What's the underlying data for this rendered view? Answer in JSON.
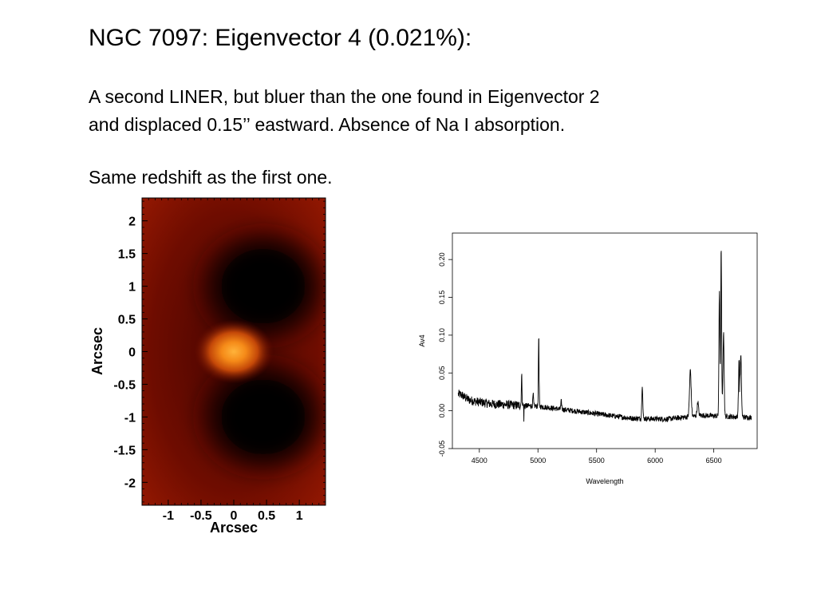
{
  "slide": {
    "title": "NGC 7097: Eigenvector 4 (0.021%):",
    "paragraph1_line1": "A second LINER, but bluer than the one found in Eigenvector 2",
    "paragraph1_line2": "and displaced 0.15’’ eastward. Absence of Na I absorption.",
    "paragraph2": "Same redshift as the first one."
  },
  "chart_data": [
    {
      "type": "heatmap",
      "xlabel": "Arcsec",
      "ylabel": "Arcsec",
      "xlim": [
        -1.4,
        1.4
      ],
      "ylim": [
        -2.35,
        2.35
      ],
      "xticks": [
        "-1",
        "-0.5",
        "0",
        "0.5",
        "1"
      ],
      "yticks": [
        "2",
        "1.5",
        "1",
        "0.5",
        "0",
        "-0.5",
        "-1",
        "-1.5",
        "-2"
      ],
      "colormap": [
        "#000000",
        "#6a0a00",
        "#b02300",
        "#f07a10",
        "#ffb33a"
      ],
      "features": [
        {
          "kind": "bright-peak",
          "x": 0.0,
          "y": 0.0
        },
        {
          "kind": "dark-lobe",
          "x": 0.45,
          "y": 1.0
        },
        {
          "kind": "dark-lobe",
          "x": 0.45,
          "y": -1.0
        }
      ]
    },
    {
      "type": "line",
      "xlabel": "Wavelength",
      "ylabel": "Av4",
      "xlim": [
        4270,
        6870
      ],
      "ylim": [
        -0.05,
        0.235
      ],
      "xticks": [
        "4500",
        "5000",
        "5500",
        "6000",
        "6500"
      ],
      "yticks": [
        "-0.05",
        "0.00",
        "0.05",
        "0.10",
        "0.15",
        "0.20"
      ],
      "line_color": "#000000",
      "continuum": {
        "x": [
          4320,
          4600,
          5000,
          5400,
          5800,
          6100,
          6400,
          6820
        ],
        "y": [
          0.016,
          0.009,
          0.006,
          -0.002,
          -0.01,
          -0.011,
          -0.006,
          -0.009
        ]
      },
      "lines": [
        {
          "x": 4861,
          "amp": 0.039,
          "width": 3
        },
        {
          "x": 4959,
          "amp": 0.015,
          "width": 3
        },
        {
          "x": 5007,
          "amp": 0.094,
          "width": 3
        },
        {
          "x": 5199,
          "amp": 0.01,
          "width": 4
        },
        {
          "x": 5890,
          "amp": 0.045,
          "width": 4
        },
        {
          "x": 6300,
          "amp": 0.062,
          "width": 7
        },
        {
          "x": 6364,
          "amp": 0.018,
          "width": 6
        },
        {
          "x": 6548,
          "amp": 0.166,
          "width": 4
        },
        {
          "x": 6563,
          "amp": 0.225,
          "width": 4
        },
        {
          "x": 6583,
          "amp": 0.11,
          "width": 5
        },
        {
          "x": 6716,
          "amp": 0.076,
          "width": 5
        },
        {
          "x": 6731,
          "amp": 0.08,
          "width": 5
        }
      ]
    }
  ]
}
